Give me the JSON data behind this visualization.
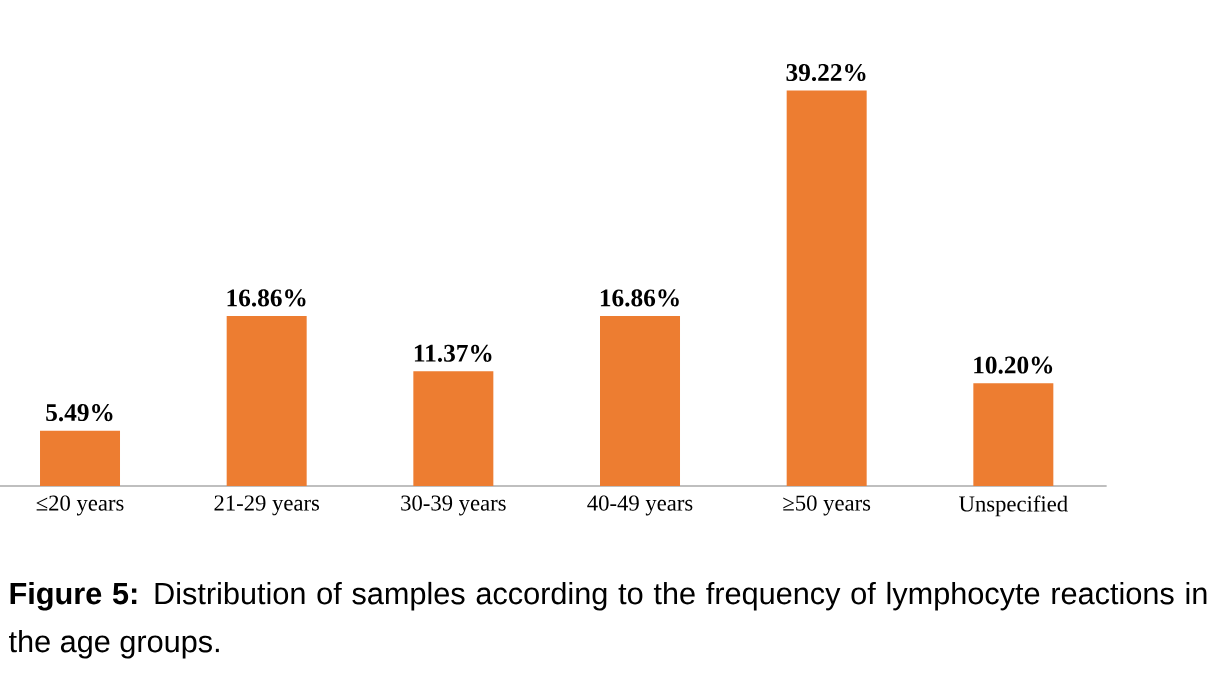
{
  "chart_data": {
    "type": "bar",
    "categories": [
      "≤20 years",
      "21-29 years",
      "30-39 years",
      "40-49 years",
      "≥50 years",
      "Unspecified"
    ],
    "values": [
      5.49,
      16.86,
      11.37,
      16.86,
      39.22,
      10.2
    ],
    "value_labels": [
      "5.49%",
      "16.86%",
      "11.37%",
      "16.86%",
      "39.22%",
      "10.20%"
    ],
    "color": "#ed7d31",
    "annotations": [
      "**Figure 5:** Distribution of samples according to the frequency of lymphocyte reactions in the age groups."
    ]
  }
}
